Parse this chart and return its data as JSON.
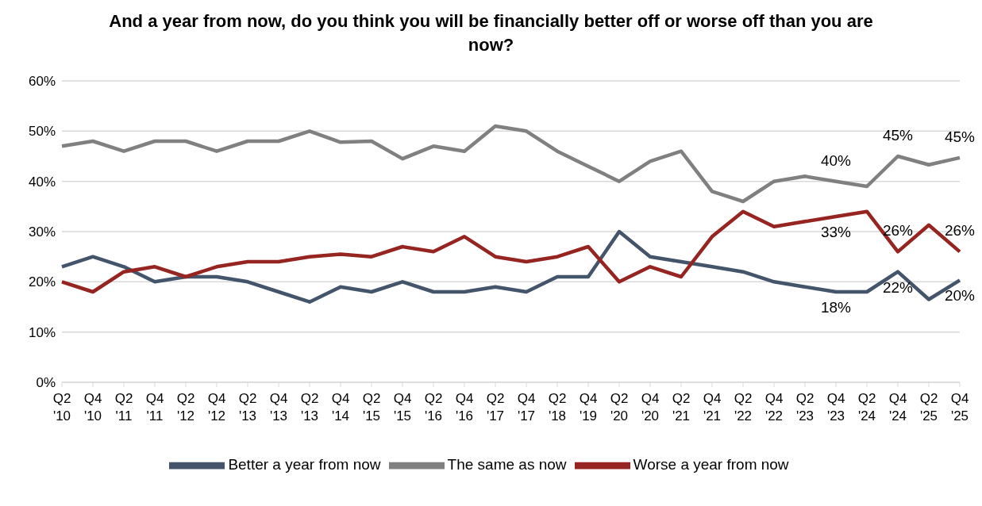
{
  "chart_data": {
    "type": "line",
    "title": "And a year from now, do you think you will be financially better off or worse off than you are now?",
    "categories": [
      "Q2 '10",
      "Q4 '10",
      "Q2 '11",
      "Q4 '11",
      "Q2 '12",
      "Q4 '12",
      "Q2 '13",
      "Q4 '13",
      "Q2 '13",
      "Q4 '14",
      "Q2 '15",
      "Q4 '15",
      "Q2 '16",
      "Q4 '16",
      "Q2 '17",
      "Q4 '17",
      "Q2 '18",
      "Q4 '19",
      "Q2 '20",
      "Q4 '20",
      "Q2 '21",
      "Q4 '21",
      "Q2 '22",
      "Q4 '22",
      "Q2 '23",
      "Q4 '23",
      "Q2 '24",
      "Q4 '24",
      "Q2 '25",
      "Q4 '25"
    ],
    "series": [
      {
        "name": "Better a year from now",
        "color": "#44546a",
        "values": [
          23,
          25,
          23,
          20,
          21,
          21,
          20,
          18,
          16,
          19,
          18,
          20,
          18,
          18,
          19,
          18,
          21,
          21,
          30,
          25,
          24,
          23,
          22,
          20,
          19,
          18,
          18,
          22,
          16.5,
          20.3
        ],
        "value_labels": [
          null,
          null,
          null,
          null,
          null,
          null,
          null,
          null,
          null,
          null,
          null,
          null,
          null,
          null,
          null,
          null,
          null,
          null,
          null,
          null,
          null,
          null,
          null,
          null,
          null,
          "18%",
          null,
          "22%",
          null,
          "20%"
        ]
      },
      {
        "name": "The same as now",
        "color": "#808080",
        "values": [
          47,
          48,
          46,
          48,
          48,
          46,
          48,
          48,
          50,
          47.8,
          48,
          44.5,
          47,
          46,
          51,
          50,
          46,
          43,
          40,
          44,
          46,
          38,
          36,
          40,
          41,
          40,
          39,
          45,
          43.3,
          44.7
        ],
        "value_labels": [
          null,
          null,
          null,
          null,
          null,
          null,
          null,
          null,
          null,
          null,
          null,
          null,
          null,
          null,
          null,
          null,
          null,
          null,
          null,
          null,
          null,
          null,
          null,
          null,
          null,
          "40%",
          null,
          "45%",
          null,
          "45%"
        ]
      },
      {
        "name": "Worse a year from now",
        "color": "#962420",
        "values": [
          20,
          18,
          22,
          23,
          21,
          23,
          24,
          24,
          25,
          25.5,
          25,
          27,
          26,
          29,
          25,
          24,
          25,
          27,
          20,
          23,
          21,
          29,
          34,
          31,
          32,
          33,
          34,
          26,
          31.3,
          26
        ],
        "value_labels": [
          null,
          null,
          null,
          null,
          null,
          null,
          null,
          null,
          null,
          null,
          null,
          null,
          null,
          null,
          null,
          null,
          null,
          null,
          null,
          null,
          null,
          null,
          null,
          null,
          null,
          "33%",
          null,
          "26%",
          null,
          "26%"
        ]
      }
    ],
    "ylim": [
      0,
      60
    ],
    "yticks": [
      {
        "value": 0,
        "label": "0%"
      },
      {
        "value": 10,
        "label": "10%"
      },
      {
        "value": 20,
        "label": "20%"
      },
      {
        "value": 30,
        "label": "30%"
      },
      {
        "value": 40,
        "label": "40%"
      },
      {
        "value": 50,
        "label": "50%"
      },
      {
        "value": 60,
        "label": "60%"
      }
    ],
    "grid": "y",
    "legend": "bottom",
    "marker": "none",
    "line_style": "solid"
  }
}
